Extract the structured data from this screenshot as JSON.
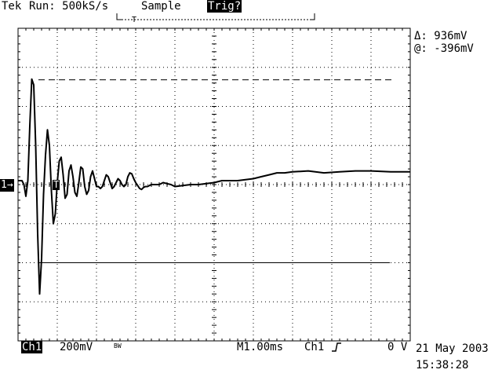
{
  "header": {
    "brand": "Tek",
    "run_state": "Run: 500kS/s",
    "acq_mode": "Sample",
    "trigger_status": "Trig?"
  },
  "cursors": {
    "delta": "Δ: 936mV",
    "at": "@: -396mV"
  },
  "channel_marker": "1→",
  "trigger_marker": "T",
  "footer": {
    "channel": "Ch1",
    "volts_per_div": "200mV",
    "bw_limit": "BW",
    "timebase": "M1.00ms",
    "trigger_source": "Ch1",
    "trigger_slope_icon": "rising-edge-icon",
    "trigger_level": "0 V",
    "date": "21 May 2003",
    "time": "15:38:28"
  },
  "chart_data": {
    "type": "line",
    "xlabel": "",
    "ylabel": "",
    "x_unit": "ms",
    "y_unit": "mV",
    "xlim": [
      0,
      10
    ],
    "ylim": [
      -800,
      800
    ],
    "grid": true,
    "series": [
      {
        "x": [
          0.0,
          0.05,
          0.1,
          0.15,
          0.2,
          0.25,
          0.3,
          0.35,
          0.4,
          0.45,
          0.5,
          0.55,
          0.6,
          0.65,
          0.7,
          0.75,
          0.8,
          0.85,
          0.9,
          0.95,
          1.0,
          1.05,
          1.1,
          1.15,
          1.2,
          1.25,
          1.3,
          1.35,
          1.4,
          1.45,
          1.5,
          1.55,
          1.6,
          1.65,
          1.7,
          1.75,
          1.8,
          1.85,
          1.9,
          1.95,
          2.0,
          2.05,
          2.1,
          2.15,
          2.2,
          2.25,
          2.3,
          2.35,
          2.4,
          2.45,
          2.5,
          2.55,
          2.6,
          2.65,
          2.7,
          2.75,
          2.8,
          2.85,
          2.9,
          2.95,
          3.0,
          3.05,
          3.1,
          3.15,
          3.2,
          3.25,
          3.3,
          3.35,
          3.4,
          3.45,
          3.5,
          3.6,
          3.7,
          3.8,
          3.9,
          4.0,
          4.2,
          4.4,
          4.6,
          4.8,
          5.0,
          5.2,
          5.4,
          5.6,
          5.8,
          6.0,
          6.2,
          6.4,
          6.6,
          6.8,
          7.0,
          7.4,
          7.8,
          8.2,
          8.6,
          9.0,
          9.5,
          10.0
        ],
        "y": [
          20,
          20,
          20,
          0,
          -60,
          20,
          300,
          540,
          510,
          200,
          -250,
          -560,
          -380,
          -50,
          150,
          280,
          200,
          -30,
          -200,
          -150,
          10,
          120,
          140,
          50,
          -70,
          -50,
          70,
          100,
          40,
          -40,
          -60,
          10,
          90,
          80,
          -10,
          -50,
          -30,
          40,
          70,
          30,
          -10,
          -10,
          -20,
          -10,
          20,
          50,
          40,
          10,
          -20,
          -10,
          10,
          30,
          20,
          0,
          -10,
          0,
          40,
          60,
          55,
          30,
          10,
          -5,
          -20,
          -25,
          -15,
          -10,
          -10,
          -5,
          0,
          0,
          0,
          0,
          10,
          5,
          0,
          -10,
          -5,
          0,
          0,
          5,
          10,
          20,
          20,
          20,
          25,
          30,
          40,
          50,
          60,
          60,
          65,
          70,
          60,
          65,
          70,
          70,
          65,
          65
        ]
      }
    ],
    "reference_lines": [
      {
        "style": "dashed",
        "y": 536
      },
      {
        "style": "solid",
        "y": -400
      }
    ]
  }
}
